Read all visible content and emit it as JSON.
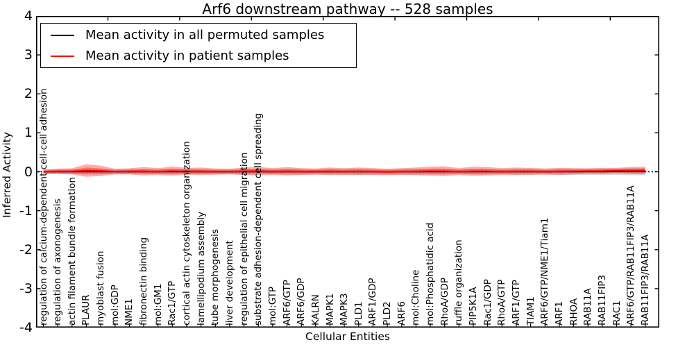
{
  "title": "Arf6 downstream pathway -- 528 samples",
  "xlabel": "Cellular Entities",
  "ylabel": "Inferred Activity",
  "legend": [
    {
      "label": "Mean activity in all permuted samples",
      "color": "#000000"
    },
    {
      "label": "Mean activity in patient samples",
      "color": "#ff0000"
    }
  ],
  "chart_data": {
    "type": "line",
    "title": "Arf6 downstream pathway -- 528 samples",
    "xlabel": "Cellular Entities",
    "ylabel": "Inferred Activity",
    "ylim": [
      -4,
      4
    ],
    "yticks": [
      -4,
      -3,
      -2,
      -1,
      0,
      1,
      2,
      3,
      4
    ],
    "grid": false,
    "legend_position": "upper left",
    "zero_line": {
      "value": 0,
      "style": "dotted",
      "color": "#000000"
    },
    "band_fill_colors": {
      "patient": "rgba(255,0,0,0.33)",
      "permuted": "rgba(0,0,0,0.15)"
    },
    "categories": [
      "regulation of calcium-dependent cell-cell adhesion",
      "regulation of axonogenesis",
      "actin filament bundle formation",
      "PLAUR",
      "myoblast fusion",
      "mol:GDP",
      "NME1",
      "fibronectin binding",
      "mol:GM1",
      "Rac1/GTP",
      "cortical actin cytoskeleton organization",
      "lamellipodium assembly",
      "tube morphogenesis",
      "liver development",
      "regulation of epithelial cell migration",
      "substrate adhesion-dependent cell spreading",
      "mol:GTP",
      "ARF6/GTP",
      "ARF6/GDP",
      "KALRN",
      "MAPK1",
      "MAPK3",
      "PLD1",
      "ARF1/GDP",
      "PLD2",
      "ARF6",
      "mol:Choline",
      "mol:Phosphatidic acid",
      "RhoA/GDP",
      "ruffle organization",
      "PIP5K1A",
      "Rac1/GDP",
      "RhoA/GTP",
      "ARF1/GTP",
      "TIAM1",
      "ARF6/GTP/NME1/Tiam1",
      "ARF1",
      "RHOA",
      "RAB11A",
      "RAB11FIP3",
      "RAC1",
      "ARF6/GTP/RAB11FIP3/RAB11A",
      "RAB11FIP3/RAB11A"
    ],
    "series": [
      {
        "name": "Mean activity in all permuted samples",
        "color": "#000000",
        "values": [
          0,
          0,
          0,
          0,
          0,
          0,
          0,
          0,
          0,
          0,
          0,
          0,
          0,
          0,
          0,
          0,
          0,
          0,
          0,
          0,
          0,
          0,
          0,
          0,
          0,
          0,
          0,
          0,
          0,
          0,
          0,
          0,
          0,
          0,
          0,
          0,
          0,
          0,
          0,
          0,
          0,
          0,
          0
        ],
        "std": [
          0.062,
          0.062,
          0.062,
          0.071,
          0.071,
          0.062,
          0.062,
          0.062,
          0.062,
          0.071,
          0.062,
          0.062,
          0.062,
          0.062,
          0.071,
          0.071,
          0.062,
          0.071,
          0.071,
          0.062,
          0.071,
          0.071,
          0.08,
          0.071,
          0.071,
          0.071,
          0.071,
          0.071,
          0.071,
          0.062,
          0.071,
          0.071,
          0.062,
          0.071,
          0.071,
          0.062,
          0.08,
          0.08,
          0.08,
          0.08,
          0.08,
          0.089,
          0.089
        ]
      },
      {
        "name": "Mean activity in patient samples",
        "color": "#ff0000",
        "values": [
          0.0,
          0.01,
          0.01,
          0.032,
          0.021,
          0.005,
          0.01,
          0.012,
          0.005,
          0.018,
          0.01,
          0.01,
          0.004,
          0.004,
          0.012,
          0.016,
          0.006,
          0.012,
          0.006,
          0.004,
          0.01,
          0.006,
          0.01,
          0.006,
          -0.004,
          0.004,
          0.01,
          0.016,
          0.016,
          0.004,
          0.012,
          0.012,
          0.004,
          0.01,
          0.01,
          0.004,
          0.01,
          0.012,
          0.018,
          0.02,
          0.03,
          0.032,
          0.034
        ],
        "std": [
          0.053,
          0.071,
          0.08,
          0.16,
          0.134,
          0.071,
          0.08,
          0.107,
          0.089,
          0.116,
          0.089,
          0.098,
          0.08,
          0.071,
          0.098,
          0.107,
          0.089,
          0.107,
          0.089,
          0.08,
          0.098,
          0.089,
          0.098,
          0.089,
          0.08,
          0.089,
          0.098,
          0.116,
          0.125,
          0.089,
          0.116,
          0.107,
          0.089,
          0.098,
          0.089,
          0.08,
          0.089,
          0.08,
          0.071,
          0.08,
          0.071,
          0.089,
          0.098
        ]
      }
    ]
  }
}
